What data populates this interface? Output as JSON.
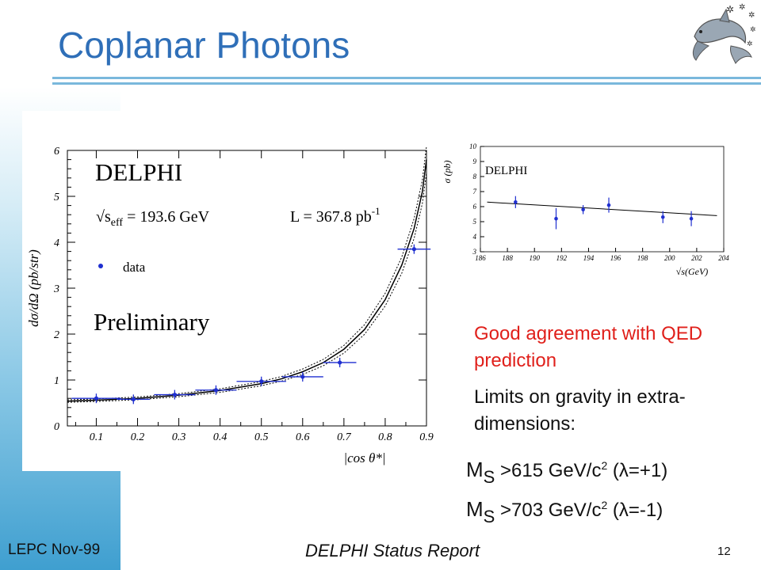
{
  "slide": {
    "title": "Coplanar Photons",
    "footer_left": "LEPC Nov-99",
    "footer_center": "DELPHI Status Report",
    "page_number": "12"
  },
  "bullets": [
    {
      "text": "Good agreement with QED prediction",
      "color": "#e0201b"
    },
    {
      "text": "Limits on gravity in extra-dimensions:",
      "color": "#111111"
    }
  ],
  "limits": [
    {
      "symbol": "M",
      "subscript": "S",
      "value": ">615 GeV/c",
      "power": "2",
      "lambda_text": " (λ=+1)"
    },
    {
      "symbol": "M",
      "subscript": "S",
      "value": ">703 GeV/c",
      "power": "2",
      "lambda_text": " (λ=-1)"
    }
  ],
  "chart_data": [
    {
      "type": "scatter",
      "title": "DELPHI",
      "energy_label": "√s",
      "energy_sub": "eff",
      "energy_value": "= 193.6 GeV",
      "lumi_label": "L = 367.8 pb",
      "lumi_power": "-1",
      "status": "Preliminary",
      "xlabel": "|cos θ*|",
      "ylabel": "dσ/dΩ (pb/str)",
      "legend": [
        "data"
      ],
      "xlim": [
        0.03,
        0.9
      ],
      "ylim": [
        0,
        6
      ],
      "xticks": [
        "0.1",
        "0.2",
        "0.3",
        "0.4",
        "0.5",
        "0.6",
        "0.7",
        "0.8",
        "0.9"
      ],
      "yticks": [
        "0",
        "1",
        "2",
        "3",
        "4",
        "5",
        "6"
      ],
      "series": [
        {
          "name": "data",
          "x": [
            0.1,
            0.19,
            0.29,
            0.39,
            0.5,
            0.6,
            0.69,
            0.87
          ],
          "y": [
            0.6,
            0.58,
            0.68,
            0.78,
            0.97,
            1.07,
            1.38,
            3.85
          ],
          "xerr": [
            0.06,
            0.04,
            0.05,
            0.05,
            0.06,
            0.05,
            0.04,
            0.04
          ]
        }
      ],
      "curve": {
        "x": [
          0.03,
          0.1,
          0.2,
          0.3,
          0.4,
          0.5,
          0.55,
          0.6,
          0.65,
          0.7,
          0.75,
          0.8,
          0.84,
          0.87,
          0.89,
          0.9
        ],
        "y": [
          0.54,
          0.56,
          0.6,
          0.67,
          0.77,
          0.92,
          1.03,
          1.18,
          1.38,
          1.67,
          2.1,
          2.75,
          3.5,
          4.3,
          5.1,
          5.8
        ]
      }
    },
    {
      "type": "scatter",
      "title": "DELPHI",
      "xlabel": "√s(GeV)",
      "ylabel": "σ (pb)",
      "xlim": [
        186,
        204
      ],
      "ylim": [
        3,
        10
      ],
      "xticks": [
        "186",
        "188",
        "190",
        "192",
        "194",
        "196",
        "198",
        "200",
        "202",
        "204"
      ],
      "yticks": [
        "3",
        "4",
        "5",
        "6",
        "7",
        "8",
        "9",
        "10"
      ],
      "series": [
        {
          "name": "data",
          "x": [
            188.6,
            191.6,
            195.5,
            199.5,
            201.6,
            193.6
          ],
          "y": [
            6.3,
            5.2,
            6.1,
            5.3,
            5.2,
            5.8
          ],
          "yerr": [
            0.4,
            0.7,
            0.5,
            0.4,
            0.5,
            0.3
          ]
        }
      ],
      "line": {
        "x": [
          186.5,
          203.5
        ],
        "y": [
          6.3,
          5.4
        ]
      }
    }
  ]
}
